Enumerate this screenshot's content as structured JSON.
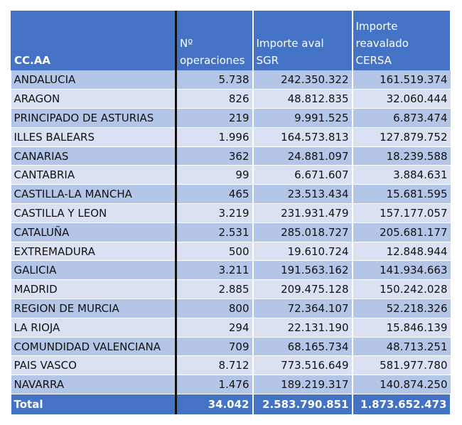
{
  "table": {
    "headers": [
      "CC.AA",
      "Nº operaciones",
      "Importe aval SGR",
      "Importe reavalado CERSA"
    ],
    "rows": [
      [
        "ANDALUCIA",
        "5.738",
        "242.350.322",
        "161.519.374"
      ],
      [
        "ARAGON",
        "826",
        "48.812.835",
        "32.060.444"
      ],
      [
        "PRINCIPADO DE ASTURIAS",
        "219",
        "9.991.525",
        "6.873.474"
      ],
      [
        "ILLES BALEARS",
        "1.996",
        "164.573.813",
        "127.879.752"
      ],
      [
        "CANARIAS",
        "362",
        "24.881.097",
        "18.239.588"
      ],
      [
        "CANTABRIA",
        "99",
        "6.671.607",
        "3.884.631"
      ],
      [
        "CASTILLA-LA MANCHA",
        "465",
        "23.513.434",
        "15.681.595"
      ],
      [
        "CASTILLA Y LEON",
        "3.219",
        "231.931.479",
        "157.177.057"
      ],
      [
        "CATALUÑA",
        "2.531",
        "285.018.727",
        "205.681.177"
      ],
      [
        "EXTREMADURA",
        "500",
        "19.610.724",
        "12.848.944"
      ],
      [
        "GALICIA",
        "3.211",
        "191.563.162",
        "141.934.663"
      ],
      [
        "MADRID",
        "2.885",
        "209.475.128",
        "150.242.028"
      ],
      [
        "REGION DE MURCIA",
        "800",
        "72.364.107",
        "52.218.326"
      ],
      [
        "LA RIOJA",
        "294",
        "22.131.190",
        "15.846.139"
      ],
      [
        "COMUNDIDAD VALENCIANA",
        "709",
        "68.165.734",
        "48.713.251"
      ],
      [
        "PAIS VASCO",
        "8.712",
        "773.516.649",
        "581.977.780"
      ],
      [
        "NAVARRA",
        "1.476",
        "189.219.317",
        "140.874.250"
      ]
    ],
    "total": [
      "Total",
      "34.042",
      "2.583.790.851",
      "1.873.652.473"
    ]
  },
  "colors": {
    "header_bg": "#4472c4",
    "row_dark": "#b4c6e7",
    "row_light": "#d9e1f2",
    "header_text": "#ffffff"
  }
}
